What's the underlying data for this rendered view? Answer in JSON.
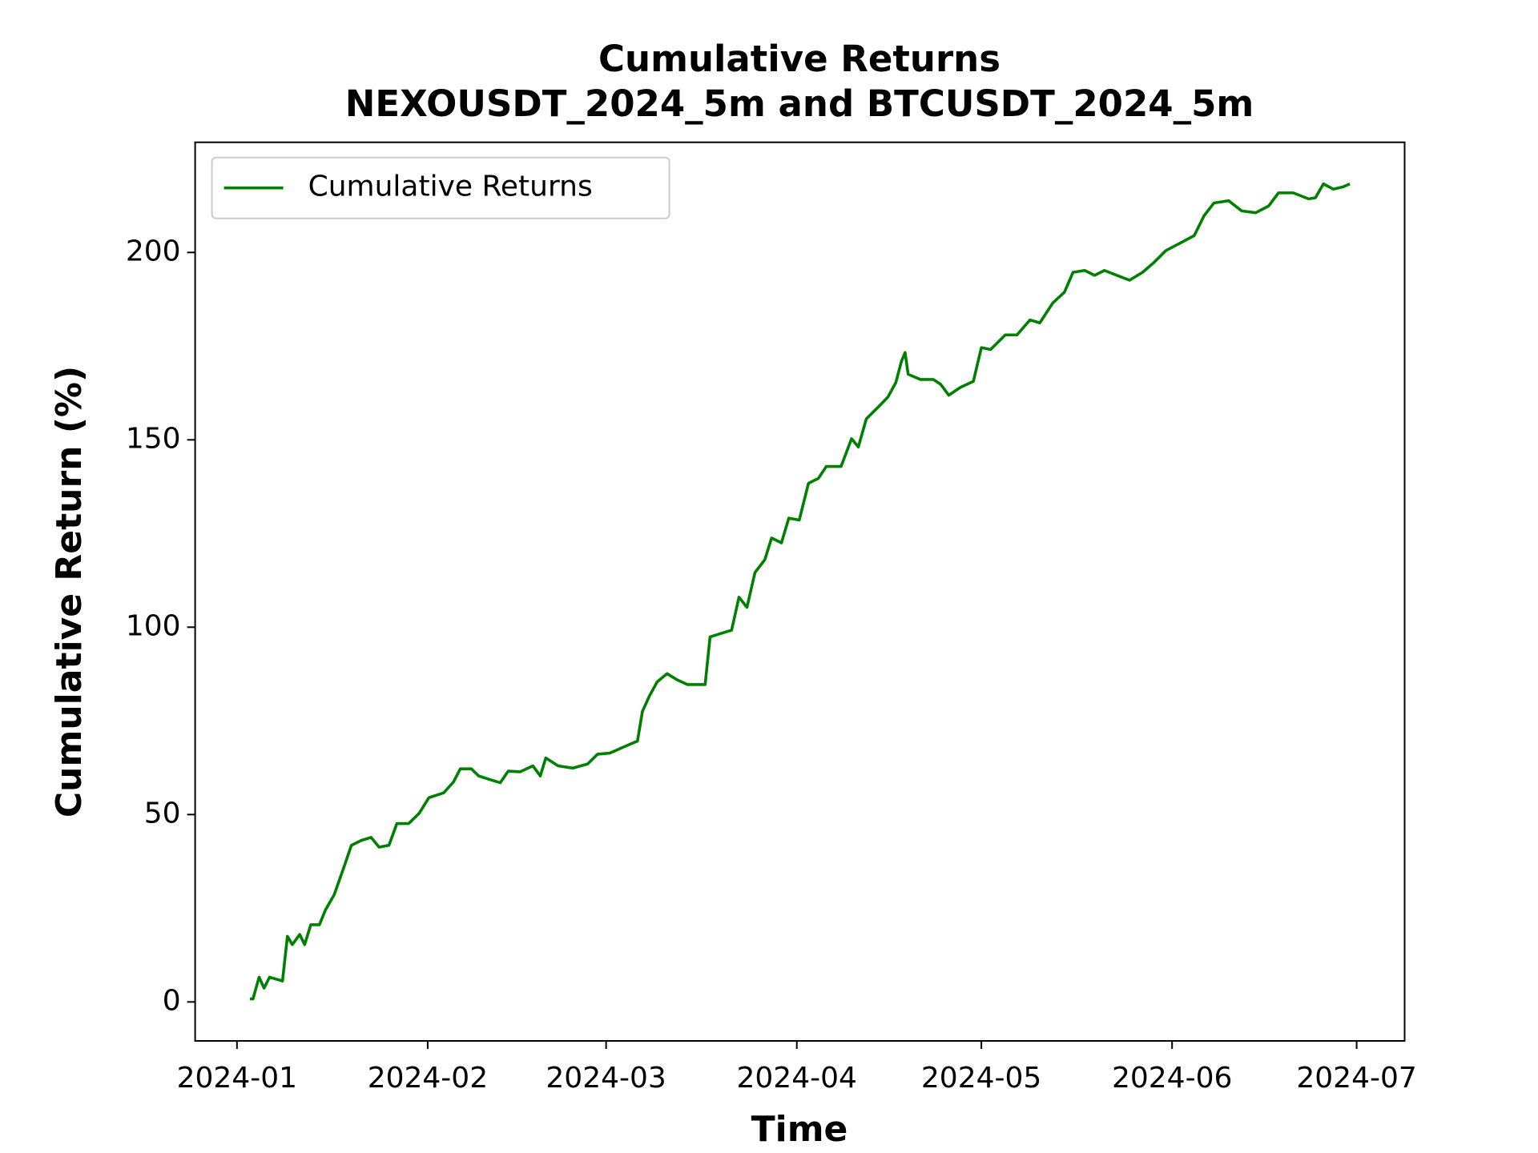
{
  "chart_data": {
    "type": "line",
    "title": "Cumulative Returns",
    "subtitle": "NEXOUSDT_2024_5m and BTCUSDT_2024_5m",
    "x_label": "Time",
    "y_label": "Cumulative Return (%)",
    "legend": "upper left",
    "x": [
      2.1,
      2.6,
      3.6,
      4.4,
      5.3,
      7.4,
      8.2,
      9.0,
      10.2,
      11.0,
      12.0,
      13.4,
      14.4,
      15.8,
      17.5,
      18.6,
      20.2,
      21.8,
      23.1,
      24.7,
      26.0,
      27.9,
      29.6,
      31.2,
      33.6,
      35.2,
      36.3,
      38.1,
      39.3,
      41.2,
      42.8,
      44.1,
      46.0,
      48.1,
      49.3,
      50.2,
      52.2,
      54.6,
      57.0,
      58.6,
      60.6,
      63.5,
      65.1,
      65.9,
      67.0,
      68.3,
      69.9,
      71.5,
      73.2,
      74.8,
      76.1,
      76.9,
      78.8,
      80.4,
      81.6,
      82.9,
      84.2,
      85.8,
      86.9,
      88.5,
      89.7,
      91.4,
      92.9,
      94.5,
      95.8,
      98.2,
      99.9,
      101.0,
      102.3,
      104.2,
      105.8,
      107.1,
      108.0,
      108.6,
      109.1,
      111.1,
      113.2,
      114.4,
      115.7,
      117.6,
      119.7,
      121.0,
      122.5,
      124.9,
      126.8,
      128.9,
      130.5,
      132.6,
      134.5,
      135.9,
      137.8,
      139.4,
      141.0,
      143.0,
      145.1,
      147.2,
      149.1,
      151.0,
      153.2,
      155.6,
      157.2,
      158.8,
      161.2,
      163.3,
      165.6,
      167.7,
      169.3,
      171.7,
      174.2,
      175.3,
      176.6,
      178.2,
      179.8,
      180.9
    ],
    "series": [
      {
        "name": "Cumulative Returns",
        "color": "#008000",
        "values": [
          0.8,
          0.8,
          6.6,
          3.7,
          6.6,
          5.6,
          17.5,
          15.3,
          18,
          15.3,
          20.6,
          20.6,
          24.6,
          28.6,
          36.5,
          41.8,
          43.1,
          43.9,
          41.3,
          41.8,
          47.6,
          47.6,
          50.3,
          54.5,
          55.8,
          58.7,
          62.2,
          62.2,
          60.3,
          59.3,
          58.5,
          61.6,
          61.4,
          63.0,
          60.3,
          65.1,
          63.0,
          62.4,
          63.5,
          66.1,
          66.4,
          68.5,
          69.6,
          77.5,
          81.5,
          85.4,
          87.6,
          86.0,
          84.7,
          84.7,
          84.7,
          97.4,
          98.4,
          99.2,
          108,
          105.3,
          114.6,
          118,
          123.8,
          122.5,
          129.1,
          128.6,
          138.4,
          139.7,
          142.9,
          142.9,
          150.3,
          148.1,
          155.6,
          158.7,
          161.4,
          165.3,
          170.9,
          173.3,
          167.5,
          166.1,
          166.1,
          164.8,
          161.9,
          164,
          165.6,
          174.6,
          174.1,
          178,
          178,
          182,
          181.2,
          186.5,
          189.4,
          194.7,
          195.2,
          193.9,
          195.2,
          193.9,
          192.6,
          194.7,
          197.4,
          200.5,
          202.4,
          204.5,
          209.8,
          213.2,
          213.8,
          211.1,
          210.6,
          212.4,
          215.9,
          215.9,
          214.3,
          214.6,
          218.3,
          216.9,
          217.5,
          218.3
        ]
      }
    ],
    "xlim": [
      -6.8,
      189.8
    ],
    "xticks": [
      {
        "value": 0,
        "label": "2024-01"
      },
      {
        "value": 31,
        "label": "2024-02"
      },
      {
        "value": 60,
        "label": "2024-03"
      },
      {
        "value": 91,
        "label": "2024-04"
      },
      {
        "value": 121,
        "label": "2024-05"
      },
      {
        "value": 152,
        "label": "2024-06"
      },
      {
        "value": 182,
        "label": "2024-07"
      }
    ],
    "ylim": [
      -10.4,
      229.4
    ],
    "yticks": [
      0,
      50,
      100,
      150,
      200
    ],
    "grid": false
  }
}
